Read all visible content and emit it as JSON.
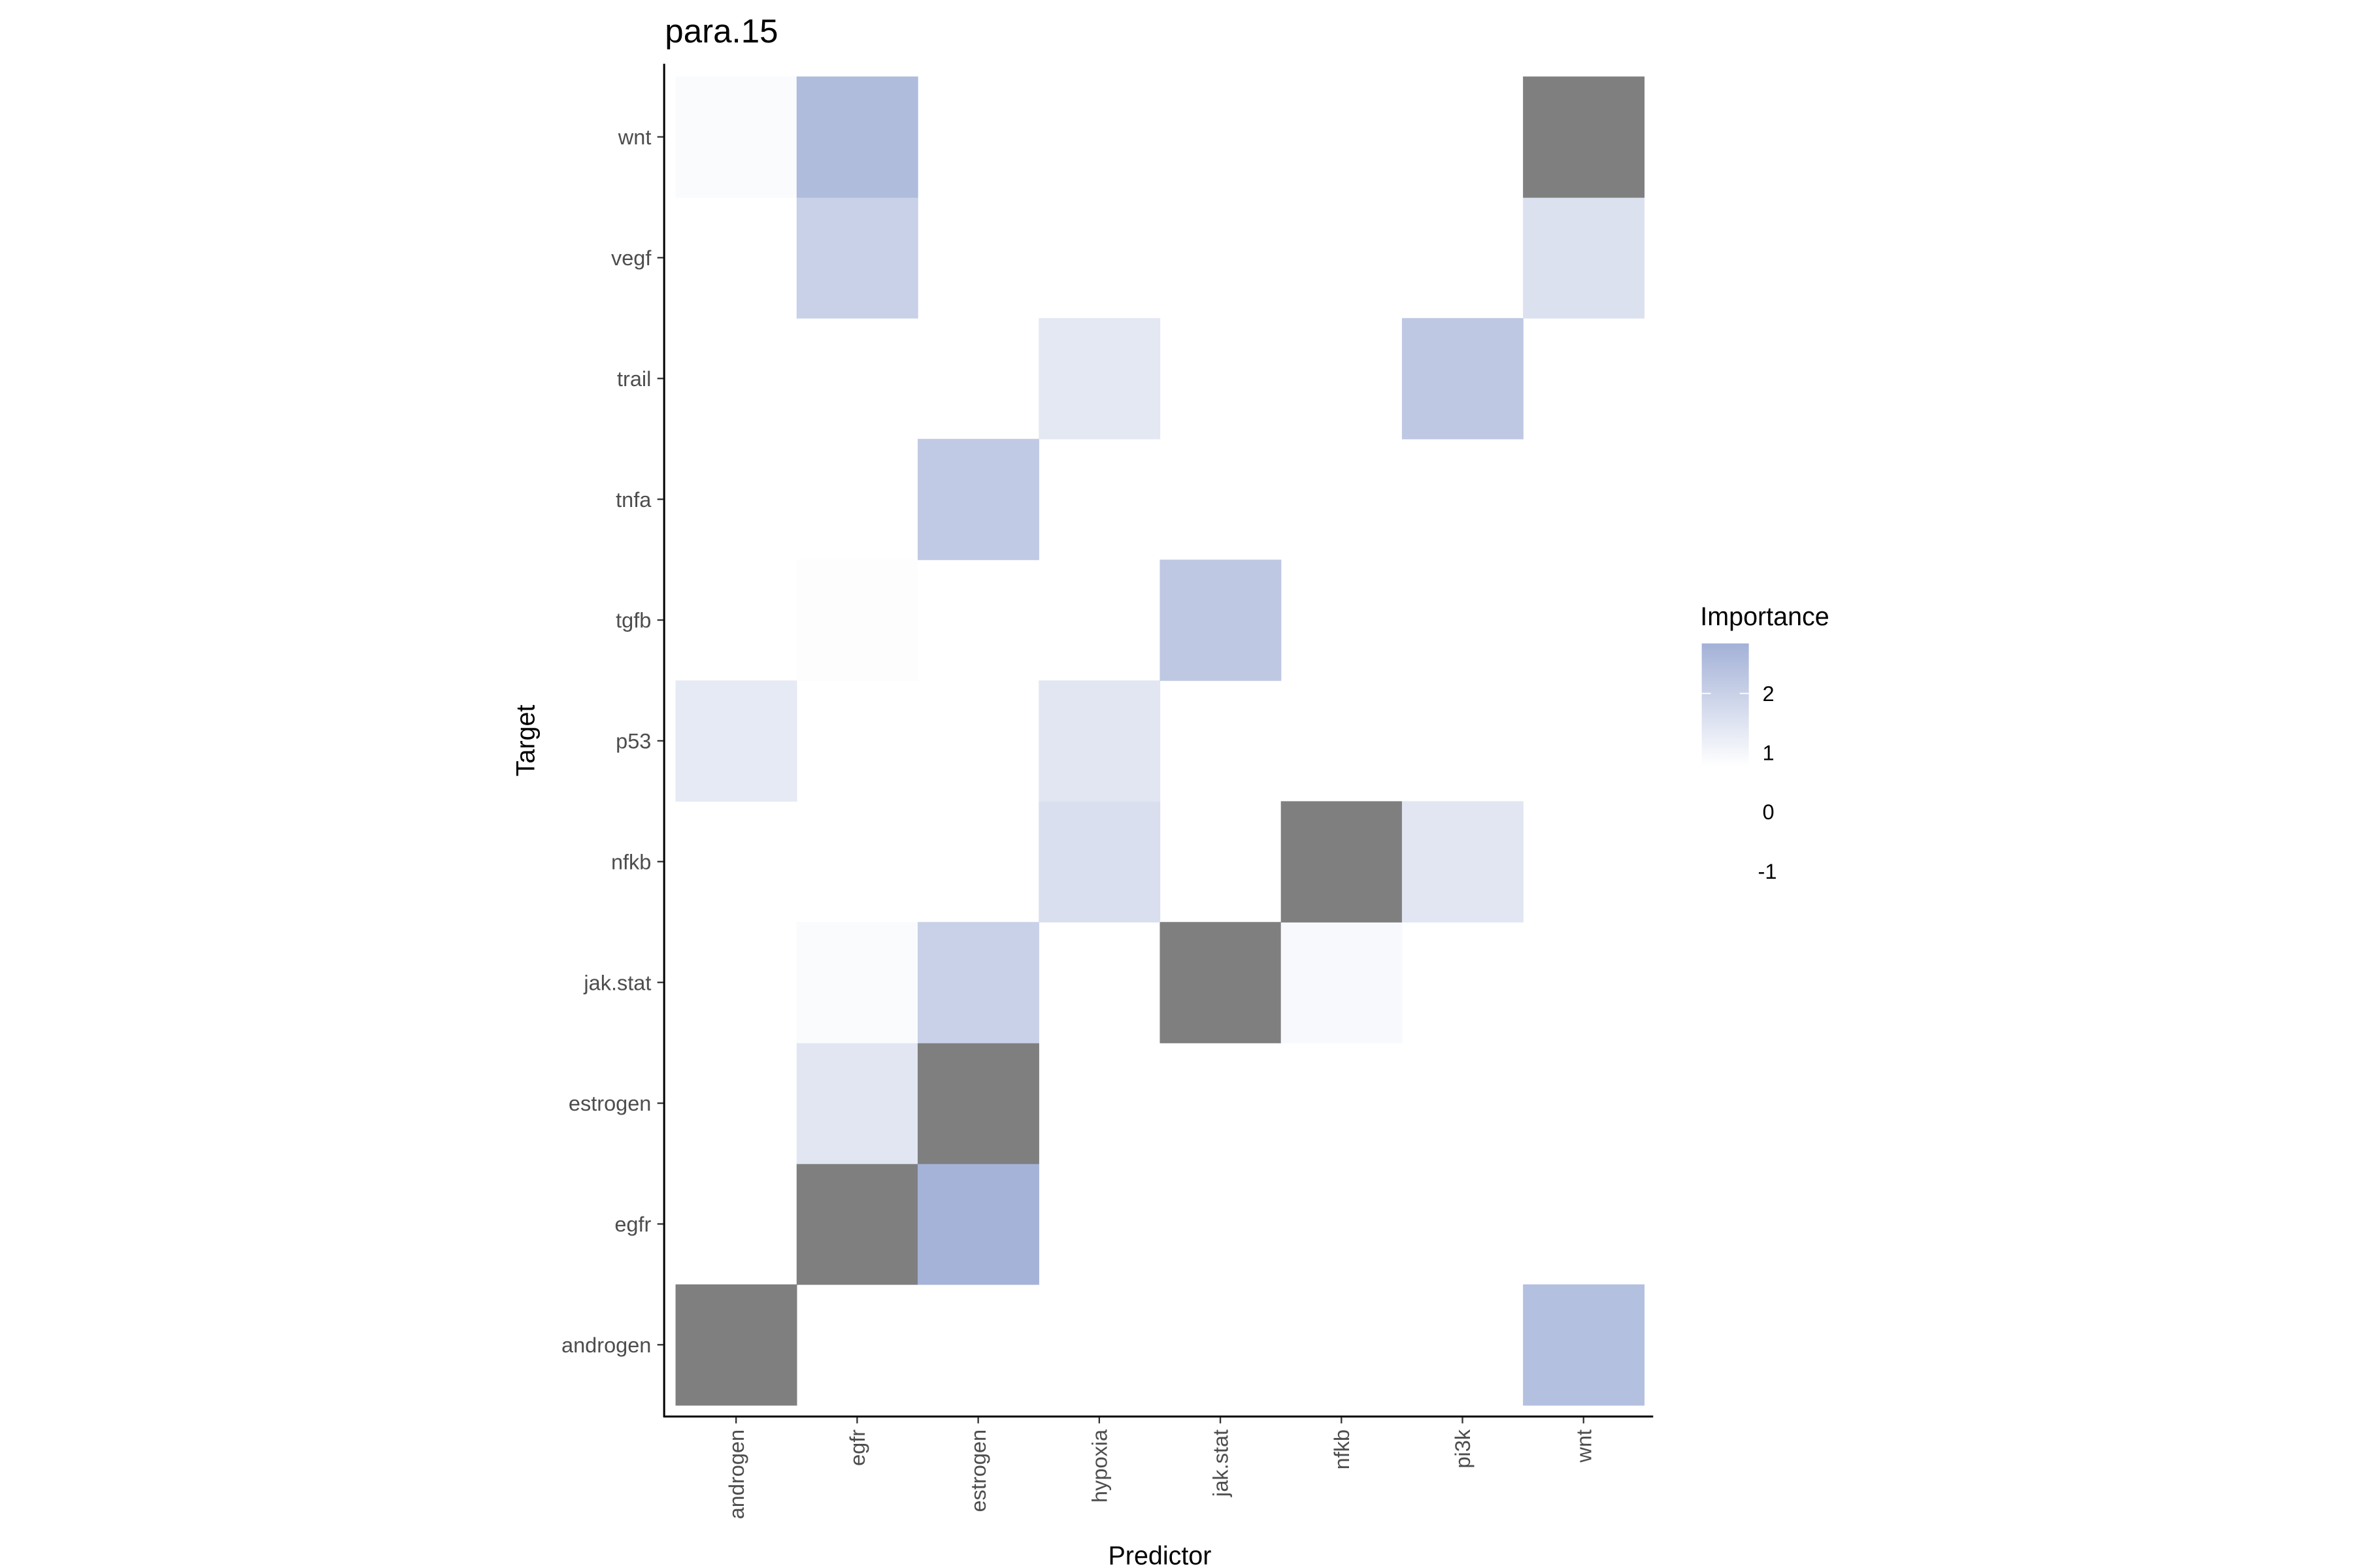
{
  "chart_data": {
    "type": "heatmap",
    "title": "para.15",
    "xlabel": "Predictor",
    "ylabel": "Target",
    "x_categories": [
      "androgen",
      "egfr",
      "estrogen",
      "hypoxia",
      "jak.stat",
      "nfkb",
      "pi3k",
      "wnt"
    ],
    "y_categories": [
      "androgen",
      "egfr",
      "estrogen",
      "jak.stat",
      "nfkb",
      "p53",
      "tgfb",
      "tnfa",
      "trail",
      "vegf",
      "wnt"
    ],
    "values": [
      [
        "NA",
        null,
        null,
        null,
        null,
        null,
        null,
        2.5
      ],
      [
        null,
        "NA",
        2.8,
        null,
        null,
        null,
        null,
        null
      ],
      [
        null,
        1.6,
        "NA",
        null,
        null,
        null,
        null,
        null
      ],
      [
        null,
        1.1,
        2.1,
        null,
        "NA",
        1.15,
        null,
        null
      ],
      [
        null,
        null,
        null,
        1.75,
        null,
        "NA",
        1.6,
        null
      ],
      [
        1.5,
        null,
        null,
        1.6,
        null,
        null,
        null,
        null
      ],
      [
        null,
        1.05,
        null,
        null,
        2.3,
        null,
        null,
        null
      ],
      [
        null,
        null,
        2.25,
        null,
        null,
        null,
        null,
        null
      ],
      [
        null,
        null,
        null,
        1.55,
        null,
        null,
        2.3,
        null
      ],
      [
        null,
        2.1,
        null,
        null,
        null,
        null,
        null,
        1.7
      ],
      [
        1.1,
        2.6,
        null,
        null,
        null,
        null,
        null,
        "NA"
      ]
    ],
    "na_color": "#7f7f7f",
    "low_color": "#ffffff",
    "high_color": "#a3b1d7",
    "color_range": [
      1,
      2.85
    ],
    "legend": {
      "title": "Importance",
      "labels": [
        "2",
        "1",
        "0",
        "-1"
      ],
      "position": "right"
    },
    "grid": false
  }
}
